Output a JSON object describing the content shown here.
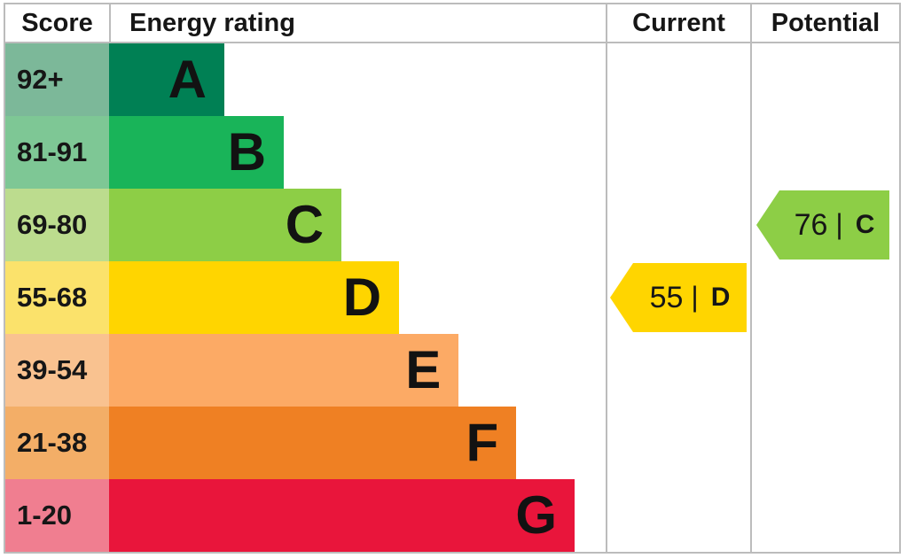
{
  "header": {
    "score": "Score",
    "rating": "Energy rating",
    "current": "Current",
    "potential": "Potential"
  },
  "bands": [
    {
      "letter": "A",
      "range": "92+",
      "bar_color": "#008054",
      "score_color": "#7cb899",
      "width_pct": 23.2
    },
    {
      "letter": "B",
      "range": "81-91",
      "bar_color": "#19b459",
      "score_color": "#7ec795",
      "width_pct": 35.2
    },
    {
      "letter": "C",
      "range": "69-80",
      "bar_color": "#8dce46",
      "score_color": "#bcdc8e",
      "width_pct": 46.8
    },
    {
      "letter": "D",
      "range": "55-68",
      "bar_color": "#ffd500",
      "score_color": "#fbe26b",
      "width_pct": 58.4
    },
    {
      "letter": "E",
      "range": "39-54",
      "bar_color": "#fcaa65",
      "score_color": "#f9c290",
      "width_pct": 70.4
    },
    {
      "letter": "F",
      "range": "21-38",
      "bar_color": "#ef8023",
      "score_color": "#f3ae67",
      "width_pct": 82.0
    },
    {
      "letter": "G",
      "range": "1-20",
      "bar_color": "#e9153b",
      "score_color": "#f07e90",
      "width_pct": 93.75
    }
  ],
  "current": {
    "value": "55",
    "separator": "|",
    "band": "D",
    "color": "#ffd500",
    "band_index": 3
  },
  "potential": {
    "value": "76",
    "separator": "|",
    "band": "C",
    "color": "#8dce46",
    "band_index": 2
  },
  "chart_data": {
    "type": "bar",
    "title": "EPC energy efficiency rating chart",
    "columns": [
      "Score",
      "Energy rating",
      "Current",
      "Potential"
    ],
    "categories": [
      "A",
      "B",
      "C",
      "D",
      "E",
      "F",
      "G"
    ],
    "score_ranges": [
      "92+",
      "81-91",
      "69-80",
      "55-68",
      "39-54",
      "21-38",
      "1-20"
    ],
    "bar_widths_relative": [
      0.23,
      0.35,
      0.47,
      0.58,
      0.7,
      0.82,
      0.94
    ],
    "band_colors": [
      "#008054",
      "#19b459",
      "#8dce46",
      "#ffd500",
      "#fcaa65",
      "#ef8023",
      "#e9153b"
    ],
    "current": {
      "score": 55,
      "band": "D"
    },
    "potential": {
      "score": 76,
      "band": "C"
    },
    "legend_position": "none",
    "grid": false
  }
}
